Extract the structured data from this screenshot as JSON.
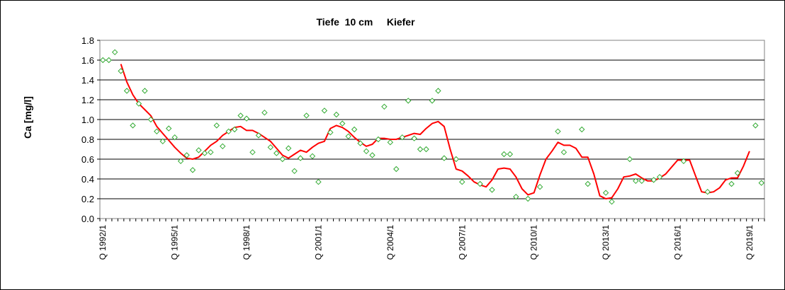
{
  "chart_data": {
    "type": "line",
    "title": "Tiefe  10 cm     Kiefer",
    "ylabel": "Ca [mg/l]",
    "xlabel": "",
    "ylim": [
      0,
      1.8
    ],
    "y_ticks": [
      "0.0",
      "0.2",
      "0.4",
      "0.6",
      "0.8",
      "1.0",
      "1.2",
      "1.4",
      "1.6",
      "1.8"
    ],
    "grid": "horizontal",
    "x_tick_labels": [
      {
        "label": "Q 1992/1",
        "quarter_index": 0
      },
      {
        "label": "Q 1995/1",
        "quarter_index": 12
      },
      {
        "label": "Q 1998/1",
        "quarter_index": 24
      },
      {
        "label": "Q 2001/1",
        "quarter_index": 36
      },
      {
        "label": "Q 2004/1",
        "quarter_index": 48
      },
      {
        "label": "Q 2007/1",
        "quarter_index": 60
      },
      {
        "label": "Q 2010/1",
        "quarter_index": 72
      },
      {
        "label": "Q 2013/1",
        "quarter_index": 84
      },
      {
        "label": "Q 2016/1",
        "quarter_index": 96
      },
      {
        "label": "Q 2019/1",
        "quarter_index": 108
      }
    ],
    "quarter_count": 111,
    "series": [
      {
        "type": "scatter",
        "color": "#33aa33",
        "values": [
          [
            0,
            1.6
          ],
          [
            1,
            1.6
          ],
          [
            2,
            1.68
          ],
          [
            3,
            1.49
          ],
          [
            4,
            1.29
          ],
          [
            5,
            0.94
          ],
          [
            6,
            1.16
          ],
          [
            7,
            1.29
          ],
          [
            8,
            1.0
          ],
          [
            9,
            0.88
          ],
          [
            10,
            0.78
          ],
          [
            11,
            0.91
          ],
          [
            12,
            0.82
          ],
          [
            13,
            0.58
          ],
          [
            14,
            0.64
          ],
          [
            15,
            0.49
          ],
          [
            16,
            0.69
          ],
          [
            17,
            0.66
          ],
          [
            18,
            0.67
          ],
          [
            19,
            0.94
          ],
          [
            20,
            0.73
          ],
          [
            21,
            0.88
          ],
          [
            22,
            0.9
          ],
          [
            23,
            1.04
          ],
          [
            24,
            1.01
          ],
          [
            25,
            0.67
          ],
          [
            26,
            0.84
          ],
          [
            27,
            1.07
          ],
          [
            28,
            0.72
          ],
          [
            29,
            0.66
          ],
          [
            30,
            0.6
          ],
          [
            31,
            0.71
          ],
          [
            32,
            0.48
          ],
          [
            33,
            0.61
          ],
          [
            34,
            1.04
          ],
          [
            35,
            0.63
          ],
          [
            36,
            0.37
          ],
          [
            37,
            1.09
          ],
          [
            38,
            0.87
          ],
          [
            39,
            1.05
          ],
          [
            40,
            0.96
          ],
          [
            41,
            0.83
          ],
          [
            42,
            0.9
          ],
          [
            43,
            0.76
          ],
          [
            44,
            0.68
          ],
          [
            45,
            0.64
          ],
          [
            46,
            0.8
          ],
          [
            47,
            1.13
          ],
          [
            48,
            0.77
          ],
          [
            49,
            0.5
          ],
          [
            50,
            0.82
          ],
          [
            51,
            1.19
          ],
          [
            52,
            0.81
          ],
          [
            53,
            0.7
          ],
          [
            54,
            0.7
          ],
          [
            55,
            1.19
          ],
          [
            56,
            1.29
          ],
          [
            57,
            0.61
          ],
          [
            59,
            0.6
          ],
          [
            60,
            0.37
          ],
          [
            63,
            0.35
          ],
          [
            65,
            0.29
          ],
          [
            67,
            0.65
          ],
          [
            68,
            0.65
          ],
          [
            69,
            0.22
          ],
          [
            71,
            0.2
          ],
          [
            73,
            0.32
          ],
          [
            76,
            0.88
          ],
          [
            77,
            0.67
          ],
          [
            80,
            0.9
          ],
          [
            81,
            0.35
          ],
          [
            84,
            0.26
          ],
          [
            85,
            0.17
          ],
          [
            88,
            0.6
          ],
          [
            89,
            0.38
          ],
          [
            90,
            0.38
          ],
          [
            92,
            0.39
          ],
          [
            93,
            0.42
          ],
          [
            97,
            0.58
          ],
          [
            101,
            0.27
          ],
          [
            105,
            0.35
          ],
          [
            106,
            0.46
          ],
          [
            109,
            0.94
          ],
          [
            110,
            0.36
          ]
        ]
      },
      {
        "type": "line",
        "color": "#ff0000",
        "values": [
          [
            3,
            1.56
          ],
          [
            4,
            1.38
          ],
          [
            5,
            1.25
          ],
          [
            6,
            1.16
          ],
          [
            7,
            1.1
          ],
          [
            8,
            1.04
          ],
          [
            9,
            0.93
          ],
          [
            10,
            0.86
          ],
          [
            11,
            0.79
          ],
          [
            12,
            0.72
          ],
          [
            13,
            0.66
          ],
          [
            14,
            0.61
          ],
          [
            15,
            0.6
          ],
          [
            16,
            0.62
          ],
          [
            17,
            0.68
          ],
          [
            18,
            0.74
          ],
          [
            19,
            0.78
          ],
          [
            20,
            0.84
          ],
          [
            21,
            0.88
          ],
          [
            22,
            0.92
          ],
          [
            23,
            0.93
          ],
          [
            24,
            0.89
          ],
          [
            25,
            0.89
          ],
          [
            26,
            0.86
          ],
          [
            27,
            0.82
          ],
          [
            28,
            0.78
          ],
          [
            29,
            0.71
          ],
          [
            30,
            0.64
          ],
          [
            31,
            0.61
          ],
          [
            32,
            0.65
          ],
          [
            33,
            0.69
          ],
          [
            34,
            0.67
          ],
          [
            35,
            0.72
          ],
          [
            36,
            0.76
          ],
          [
            37,
            0.78
          ],
          [
            38,
            0.91
          ],
          [
            39,
            0.94
          ],
          [
            40,
            0.92
          ],
          [
            41,
            0.88
          ],
          [
            42,
            0.82
          ],
          [
            43,
            0.77
          ],
          [
            44,
            0.73
          ],
          [
            45,
            0.75
          ],
          [
            46,
            0.81
          ],
          [
            47,
            0.81
          ],
          [
            48,
            0.8
          ],
          [
            49,
            0.8
          ],
          [
            50,
            0.82
          ],
          [
            51,
            0.84
          ],
          [
            52,
            0.86
          ],
          [
            53,
            0.85
          ],
          [
            54,
            0.91
          ],
          [
            55,
            0.96
          ],
          [
            56,
            0.98
          ],
          [
            57,
            0.93
          ],
          [
            58,
            0.7
          ],
          [
            59,
            0.5
          ],
          [
            60,
            0.48
          ],
          [
            61,
            0.43
          ],
          [
            62,
            0.37
          ],
          [
            63,
            0.34
          ],
          [
            64,
            0.32
          ],
          [
            65,
            0.39
          ],
          [
            66,
            0.5
          ],
          [
            67,
            0.51
          ],
          [
            68,
            0.5
          ],
          [
            69,
            0.42
          ],
          [
            70,
            0.3
          ],
          [
            71,
            0.24
          ],
          [
            72,
            0.26
          ],
          [
            73,
            0.44
          ],
          [
            74,
            0.6
          ],
          [
            75,
            0.68
          ],
          [
            76,
            0.77
          ],
          [
            77,
            0.74
          ],
          [
            78,
            0.74
          ],
          [
            79,
            0.71
          ],
          [
            80,
            0.62
          ],
          [
            81,
            0.62
          ],
          [
            82,
            0.45
          ],
          [
            83,
            0.23
          ],
          [
            84,
            0.2
          ],
          [
            85,
            0.21
          ],
          [
            86,
            0.3
          ],
          [
            87,
            0.42
          ],
          [
            88,
            0.43
          ],
          [
            89,
            0.45
          ],
          [
            90,
            0.41
          ],
          [
            91,
            0.38
          ],
          [
            92,
            0.38
          ],
          [
            93,
            0.41
          ],
          [
            94,
            0.45
          ],
          [
            95,
            0.52
          ],
          [
            96,
            0.59
          ],
          [
            97,
            0.59
          ],
          [
            98,
            0.59
          ],
          [
            99,
            0.43
          ],
          [
            100,
            0.27
          ],
          [
            101,
            0.26
          ],
          [
            102,
            0.27
          ],
          [
            103,
            0.31
          ],
          [
            104,
            0.39
          ],
          [
            105,
            0.41
          ],
          [
            106,
            0.41
          ],
          [
            107,
            0.53
          ],
          [
            108,
            0.68
          ]
        ]
      }
    ]
  }
}
